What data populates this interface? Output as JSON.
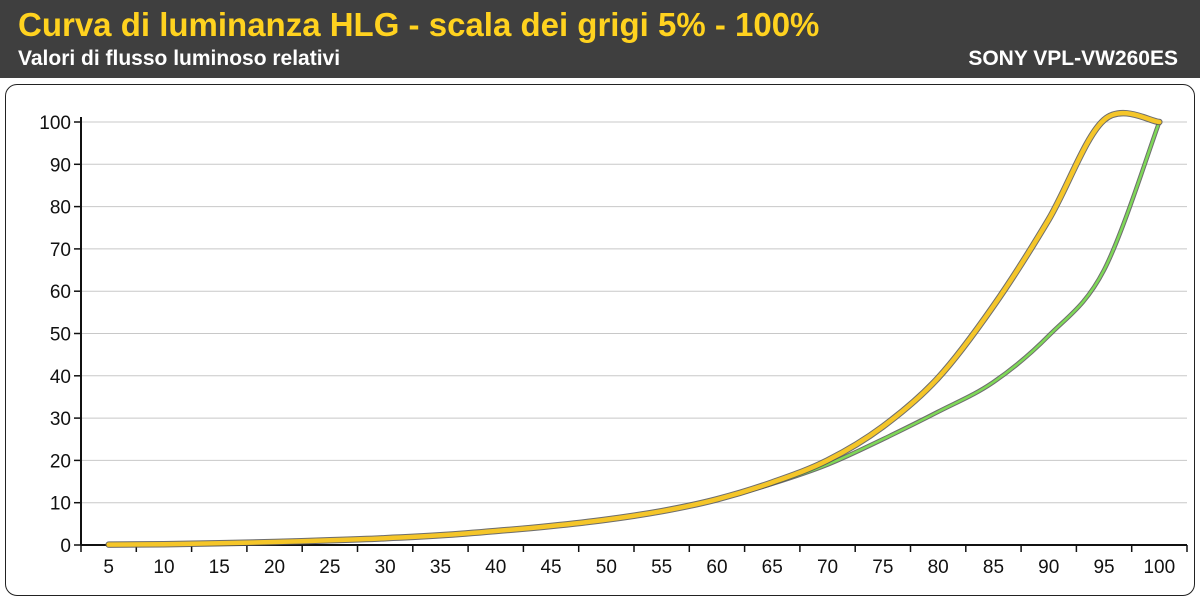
{
  "header": {
    "title": "Curva di luminanza HLG - scala dei grigi 5% - 100%",
    "subtitle": "Valori di flusso luminoso relativi",
    "brand": "SONY VPL-VW260ES"
  },
  "colors": {
    "header_bg": "#3f3f3f",
    "title": "#ffd21f",
    "measured_line": "#f5c629",
    "reference_line": "#7ed957",
    "grid": "#c8c8c8"
  },
  "chart_data": {
    "type": "line",
    "title": "Curva di luminanza HLG - scala dei grigi 5% - 100%",
    "subtitle": "Valori di flusso luminoso relativi",
    "xlabel": "",
    "ylabel": "",
    "x": [
      5,
      10,
      15,
      20,
      25,
      30,
      35,
      40,
      45,
      50,
      55,
      60,
      65,
      70,
      75,
      80,
      85,
      90,
      95,
      100
    ],
    "xlim": [
      5,
      100
    ],
    "ylim": [
      0,
      100
    ],
    "yticks": [
      0,
      10,
      20,
      30,
      40,
      50,
      60,
      70,
      80,
      90,
      100
    ],
    "grid": "horizontal",
    "legend": "none",
    "series": [
      {
        "color": "#7ed957",
        "values": [
          0.1,
          0.2,
          0.4,
          0.7,
          1.1,
          1.6,
          2.3,
          3.3,
          4.5,
          6.0,
          8.0,
          10.8,
          14.5,
          19.0,
          25.0,
          31.5,
          38.5,
          49.5,
          65.0,
          100
        ]
      },
      {
        "color": "#f5c629",
        "values": [
          0.1,
          0.2,
          0.4,
          0.7,
          1.1,
          1.6,
          2.3,
          3.3,
          4.5,
          6.0,
          8.0,
          10.8,
          14.8,
          20.0,
          28.0,
          39.5,
          56.5,
          77.0,
          100.5,
          100
        ]
      }
    ]
  }
}
